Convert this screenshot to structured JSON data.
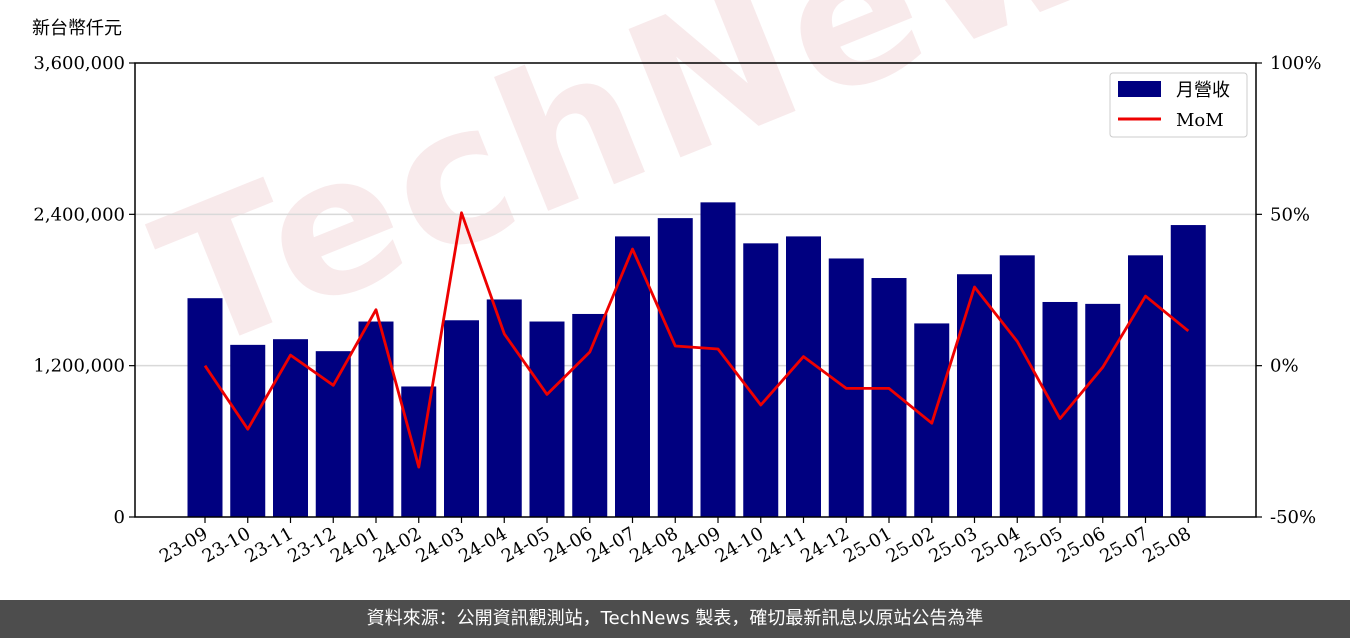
{
  "chart_data": {
    "type": "bar",
    "unit_label": "新台幣仟元",
    "categories": [
      "23-09",
      "23-10",
      "23-11",
      "23-12",
      "24-01",
      "24-02",
      "24-03",
      "24-04",
      "24-05",
      "24-06",
      "24-07",
      "24-08",
      "24-09",
      "24-10",
      "24-11",
      "24-12",
      "25-01",
      "25-02",
      "25-03",
      "25-04",
      "25-05",
      "25-06",
      "25-07",
      "25-08"
    ],
    "series": [
      {
        "name": "月營收",
        "type": "bar",
        "axis": "left",
        "color": "#000080",
        "values": [
          1735000,
          1365000,
          1410000,
          1315000,
          1550000,
          1035000,
          1560000,
          1725000,
          1550000,
          1610000,
          2225000,
          2370000,
          2495000,
          2170000,
          2225000,
          2050000,
          1895000,
          1535000,
          1925000,
          2075000,
          1705000,
          1690000,
          2075000,
          2315000
        ]
      },
      {
        "name": "MoM",
        "type": "line",
        "axis": "right",
        "color": "#ee0000",
        "values": [
          0.0,
          -21.0,
          3.5,
          -6.5,
          18.5,
          -33.5,
          50.5,
          10.5,
          -9.5,
          4.5,
          38.5,
          6.5,
          5.5,
          -13.0,
          3.0,
          -7.5,
          -7.5,
          -19.0,
          26.0,
          8.0,
          -17.5,
          -0.5,
          23.0,
          11.5
        ]
      }
    ],
    "left_axis": {
      "ylim": [
        0,
        3600000
      ],
      "ticks": [
        "0",
        "1,200,000",
        "2,400,000",
        "3,600,000"
      ],
      "tick_values": [
        0,
        1200000,
        2400000,
        3600000
      ]
    },
    "right_axis": {
      "ylim": [
        -50,
        100
      ],
      "ticks": [
        "-50%",
        "0%",
        "50%",
        "100%"
      ],
      "tick_values": [
        -50,
        0,
        50,
        100
      ]
    },
    "grid": "horizontal",
    "legend": "top-right"
  },
  "watermark": "TechNews",
  "footer": "資料來源：公開資訊觀測站，TechNews 製表，確切最新訊息以原站公告為準"
}
